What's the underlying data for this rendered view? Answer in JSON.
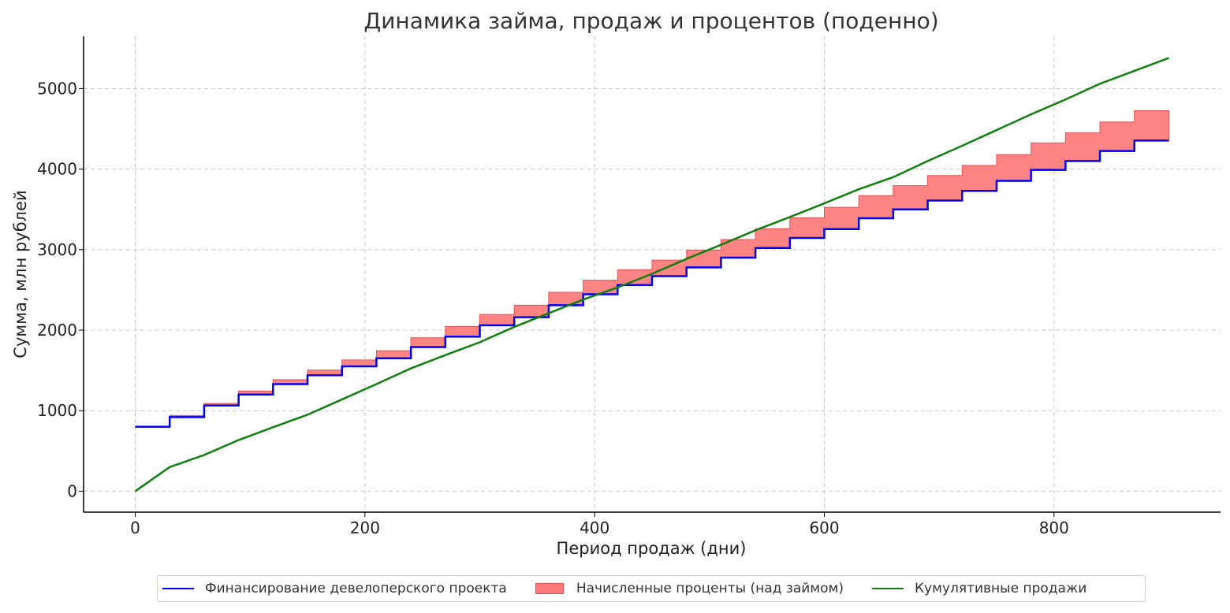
{
  "chart_data": {
    "type": "line",
    "title": "Динамика займа, продаж и процентов (поденно)",
    "xlabel": "Период продаж (дни)",
    "ylabel": "Сумма, млн рублей",
    "xlim": [
      -45,
      945
    ],
    "ylim": [
      -260,
      5650
    ],
    "xticks": [
      0,
      200,
      400,
      600,
      800
    ],
    "yticks": [
      0,
      1000,
      2000,
      3000,
      4000,
      5000
    ],
    "grid": true,
    "legend_position": "bottom-center",
    "series": [
      {
        "name": "Финансирование девелоперского проекта",
        "kind": "step",
        "color": "#0000ee",
        "x": [
          0,
          30,
          60,
          90,
          120,
          150,
          180,
          210,
          240,
          270,
          300,
          330,
          360,
          390,
          420,
          450,
          480,
          510,
          540,
          570,
          600,
          630,
          660,
          690,
          720,
          750,
          780,
          810,
          840,
          870,
          900
        ],
        "y": [
          800,
          920,
          1065,
          1200,
          1330,
          1440,
          1550,
          1650,
          1790,
          1920,
          2060,
          2160,
          2310,
          2445,
          2560,
          2670,
          2780,
          2900,
          3020,
          3145,
          3255,
          3390,
          3500,
          3610,
          3730,
          3855,
          3990,
          4100,
          4225,
          4355,
          4355
        ]
      },
      {
        "name": "Начисленные проценты (над займом)",
        "kind": "area-between",
        "color": "#ff6f6f",
        "edge_color": "#e05050",
        "x": [
          0,
          30,
          60,
          90,
          120,
          150,
          180,
          210,
          240,
          270,
          300,
          330,
          360,
          390,
          420,
          450,
          480,
          510,
          540,
          570,
          600,
          630,
          660,
          690,
          720,
          750,
          780,
          810,
          840,
          870,
          900
        ],
        "y": [
          800,
          940,
          1090,
          1245,
          1385,
          1505,
          1630,
          1745,
          1905,
          2045,
          2195,
          2310,
          2470,
          2620,
          2750,
          2870,
          2995,
          3125,
          3260,
          3395,
          3525,
          3670,
          3795,
          3920,
          4045,
          4180,
          4325,
          4450,
          4585,
          4725,
          4725
        ]
      },
      {
        "name": "Кумулятивные продажи",
        "kind": "line",
        "color": "#107f10",
        "x": [
          0,
          30,
          60,
          90,
          120,
          150,
          180,
          210,
          240,
          270,
          300,
          330,
          360,
          390,
          420,
          450,
          480,
          510,
          540,
          570,
          600,
          630,
          660,
          690,
          720,
          750,
          780,
          810,
          840,
          870,
          900
        ],
        "y": [
          0,
          300,
          450,
          635,
          795,
          950,
          1140,
          1330,
          1525,
          1690,
          1850,
          2040,
          2210,
          2380,
          2530,
          2700,
          2885,
          3060,
          3240,
          3405,
          3575,
          3750,
          3900,
          4100,
          4290,
          4485,
          4680,
          4865,
          5060,
          5220,
          5380
        ]
      }
    ]
  }
}
